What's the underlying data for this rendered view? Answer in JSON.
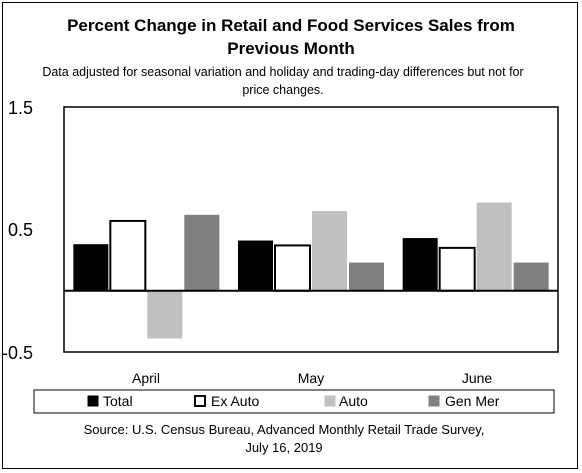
{
  "chart_data": {
    "type": "bar",
    "title_lines": [
      "Percent Change in Retail and Food Services Sales from",
      "Previous Month"
    ],
    "subtitle_lines": [
      "Data adjusted for seasonal variation and holiday and trading-day differences but not for",
      "price changes."
    ],
    "categories": [
      "April",
      "May",
      "June"
    ],
    "series": [
      {
        "name": "Total",
        "values": [
          0.38,
          0.41,
          0.43
        ],
        "color": "#000000"
      },
      {
        "name": "Ex Auto",
        "values": [
          0.57,
          0.37,
          0.35
        ],
        "color": "#ffffff"
      },
      {
        "name": "Auto",
        "values": [
          -0.39,
          0.65,
          0.72
        ],
        "color": "#c0c0c0"
      },
      {
        "name": "Gen Mer",
        "values": [
          0.62,
          0.23,
          0.23
        ],
        "color": "#808080"
      }
    ],
    "yticks": [
      "1.5",
      "0.5",
      "-0.5"
    ],
    "ylim": [
      -0.5,
      1.5
    ],
    "grid": false,
    "legend_position": "bottom",
    "source_lines": [
      "Source: U.S. Census Bureau, Advanced Monthly Retail Trade Survey,",
      "July 16, 2019"
    ]
  }
}
